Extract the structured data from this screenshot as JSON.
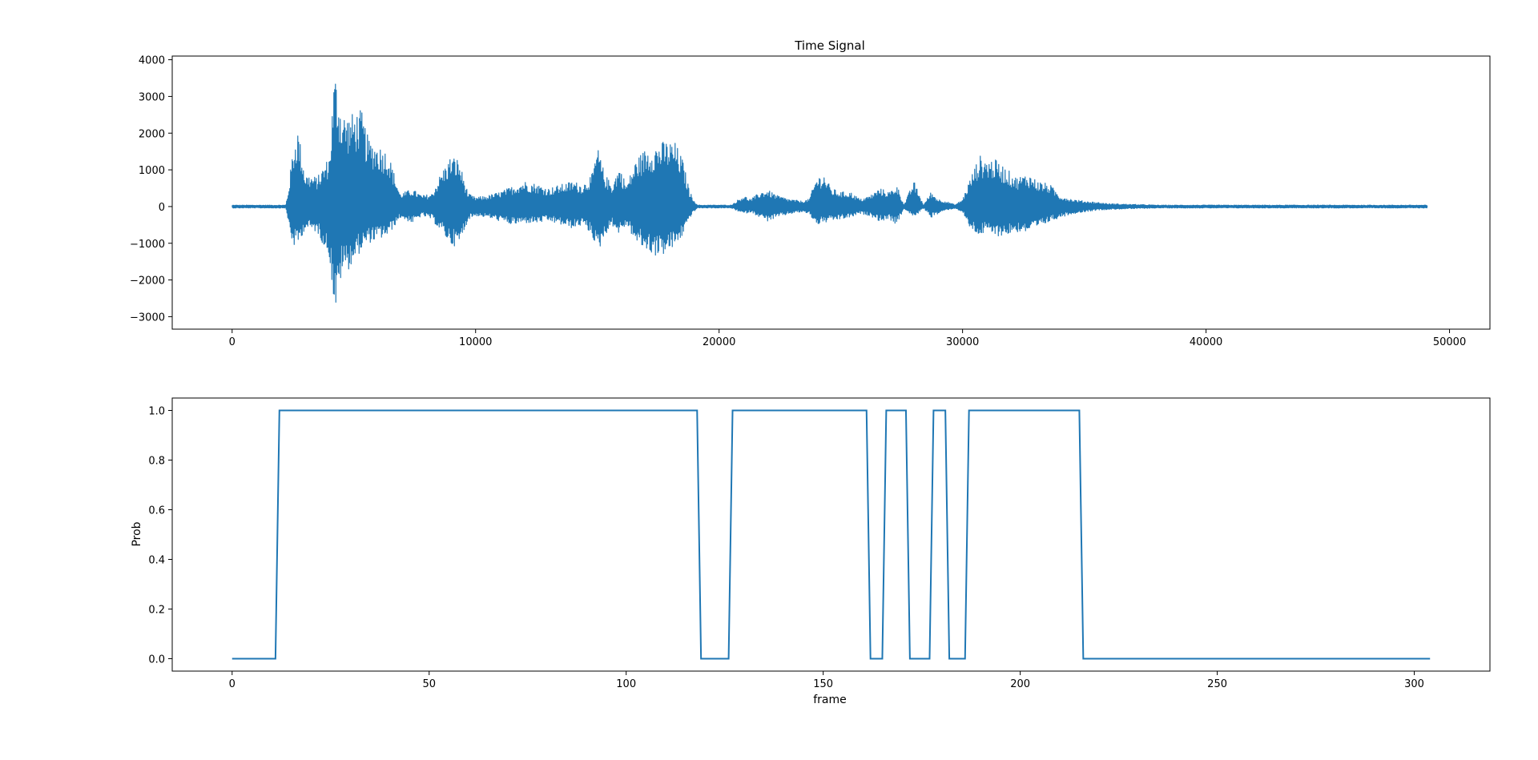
{
  "chart_data": [
    {
      "type": "line",
      "title": "Time Signal",
      "xlabel": "",
      "ylabel": "",
      "xlim": [
        -2460,
        51660
      ],
      "ylim": [
        -3340,
        4100
      ],
      "xticks": [
        0,
        10000,
        20000,
        30000,
        40000,
        50000
      ],
      "xtick_labels": [
        "0",
        "10000",
        "20000",
        "30000",
        "40000",
        "50000"
      ],
      "yticks": [
        -3000,
        -2000,
        -1000,
        0,
        1000,
        2000,
        3000,
        4000
      ],
      "ytick_labels": [
        "−3000",
        "−2000",
        "−1000",
        "0",
        "1000",
        "2000",
        "3000",
        "4000"
      ],
      "grid": false,
      "legend": "none",
      "color": "#1f77b4",
      "sample_count": 49100,
      "envelope": {
        "x": [
          0,
          2200,
          2300,
          2500,
          2700,
          3000,
          3500,
          4000,
          4200,
          4300,
          4500,
          4800,
          5300,
          5600,
          6000,
          6400,
          6900,
          7400,
          7800,
          8200,
          8600,
          9000,
          9300,
          9700,
          10000,
          10500,
          11000,
          11500,
          12000,
          12500,
          13000,
          13500,
          14000,
          14400,
          14800,
          15000,
          15300,
          15600,
          15900,
          16200,
          16600,
          17000,
          17400,
          17800,
          18200,
          18500,
          18800,
          19100,
          19500,
          20000,
          20500,
          21000,
          21300,
          21700,
          22000,
          22400,
          22900,
          23400,
          23700,
          24000,
          24300,
          24600,
          25000,
          25400,
          25800,
          26200,
          26600,
          27000,
          27300,
          27600,
          28000,
          28400,
          28700,
          29000,
          29300,
          29700,
          30000,
          30300,
          30700,
          31000,
          31300,
          31700,
          32200,
          32700,
          33100,
          33600,
          34000,
          34500,
          35000,
          35500,
          36000,
          37000,
          38000,
          39000,
          40000,
          42000,
          45000,
          47000,
          49100
        ],
        "upper": [
          40,
          40,
          400,
          1600,
          2150,
          900,
          800,
          1400,
          3700,
          3500,
          2600,
          2500,
          2650,
          1850,
          1700,
          1500,
          350,
          480,
          300,
          350,
          950,
          1400,
          1300,
          350,
          250,
          300,
          400,
          550,
          700,
          620,
          500,
          600,
          700,
          600,
          900,
          1650,
          900,
          600,
          1100,
          600,
          1300,
          1600,
          1700,
          1800,
          1750,
          1300,
          400,
          40,
          40,
          40,
          40,
          300,
          200,
          400,
          450,
          300,
          200,
          150,
          200,
          800,
          900,
          500,
          400,
          400,
          200,
          300,
          500,
          400,
          600,
          50,
          700,
          40,
          400,
          200,
          150,
          50,
          200,
          750,
          1400,
          1300,
          1300,
          1100,
          800,
          900,
          700,
          600,
          300,
          200,
          150,
          120,
          80,
          60,
          40,
          40,
          40,
          40,
          40,
          40,
          40
        ],
        "lower": [
          -40,
          -40,
          -400,
          -1100,
          -1050,
          -600,
          -700,
          -1400,
          -2800,
          -2850,
          -1800,
          -1700,
          -1200,
          -1000,
          -900,
          -800,
          -300,
          -450,
          -250,
          -350,
          -700,
          -1050,
          -1100,
          -350,
          -250,
          -300,
          -400,
          -500,
          -450,
          -450,
          -400,
          -500,
          -600,
          -500,
          -800,
          -1300,
          -800,
          -500,
          -750,
          -500,
          -1000,
          -1200,
          -1350,
          -1300,
          -1100,
          -800,
          -300,
          -40,
          -40,
          -40,
          -40,
          -200,
          -150,
          -300,
          -400,
          -300,
          -200,
          -150,
          -200,
          -500,
          -450,
          -400,
          -350,
          -300,
          -200,
          -250,
          -400,
          -350,
          -500,
          -50,
          -300,
          -40,
          -300,
          -200,
          -100,
          -50,
          -150,
          -600,
          -800,
          -700,
          -800,
          -800,
          -700,
          -700,
          -600,
          -400,
          -300,
          -200,
          -150,
          -100,
          -80,
          -60,
          -40,
          -40,
          -40,
          -40,
          -40,
          -40,
          -40
        ]
      }
    },
    {
      "type": "line",
      "title": "",
      "xlabel": "frame",
      "ylabel": "Prob",
      "xlim": [
        -15.2,
        319.2
      ],
      "ylim": [
        -0.05,
        1.05
      ],
      "xticks": [
        0,
        50,
        100,
        150,
        200,
        250,
        300
      ],
      "xtick_labels": [
        "0",
        "50",
        "100",
        "150",
        "200",
        "250",
        "300"
      ],
      "yticks": [
        0.0,
        0.2,
        0.4,
        0.6,
        0.8,
        1.0
      ],
      "ytick_labels": [
        "0.0",
        "0.2",
        "0.4",
        "0.6",
        "0.8",
        "1.0"
      ],
      "grid": false,
      "legend": "none",
      "color": "#1f77b4",
      "x": [
        0,
        11,
        12,
        118,
        119,
        126,
        127,
        161,
        162,
        165,
        166,
        171,
        172,
        177,
        178,
        181,
        182,
        186,
        187,
        215,
        216,
        304
      ],
      "y": [
        0,
        0,
        1,
        1,
        0,
        0,
        1,
        1,
        0,
        0,
        1,
        1,
        0,
        0,
        1,
        1,
        0,
        0,
        1,
        1,
        0,
        0
      ]
    }
  ]
}
